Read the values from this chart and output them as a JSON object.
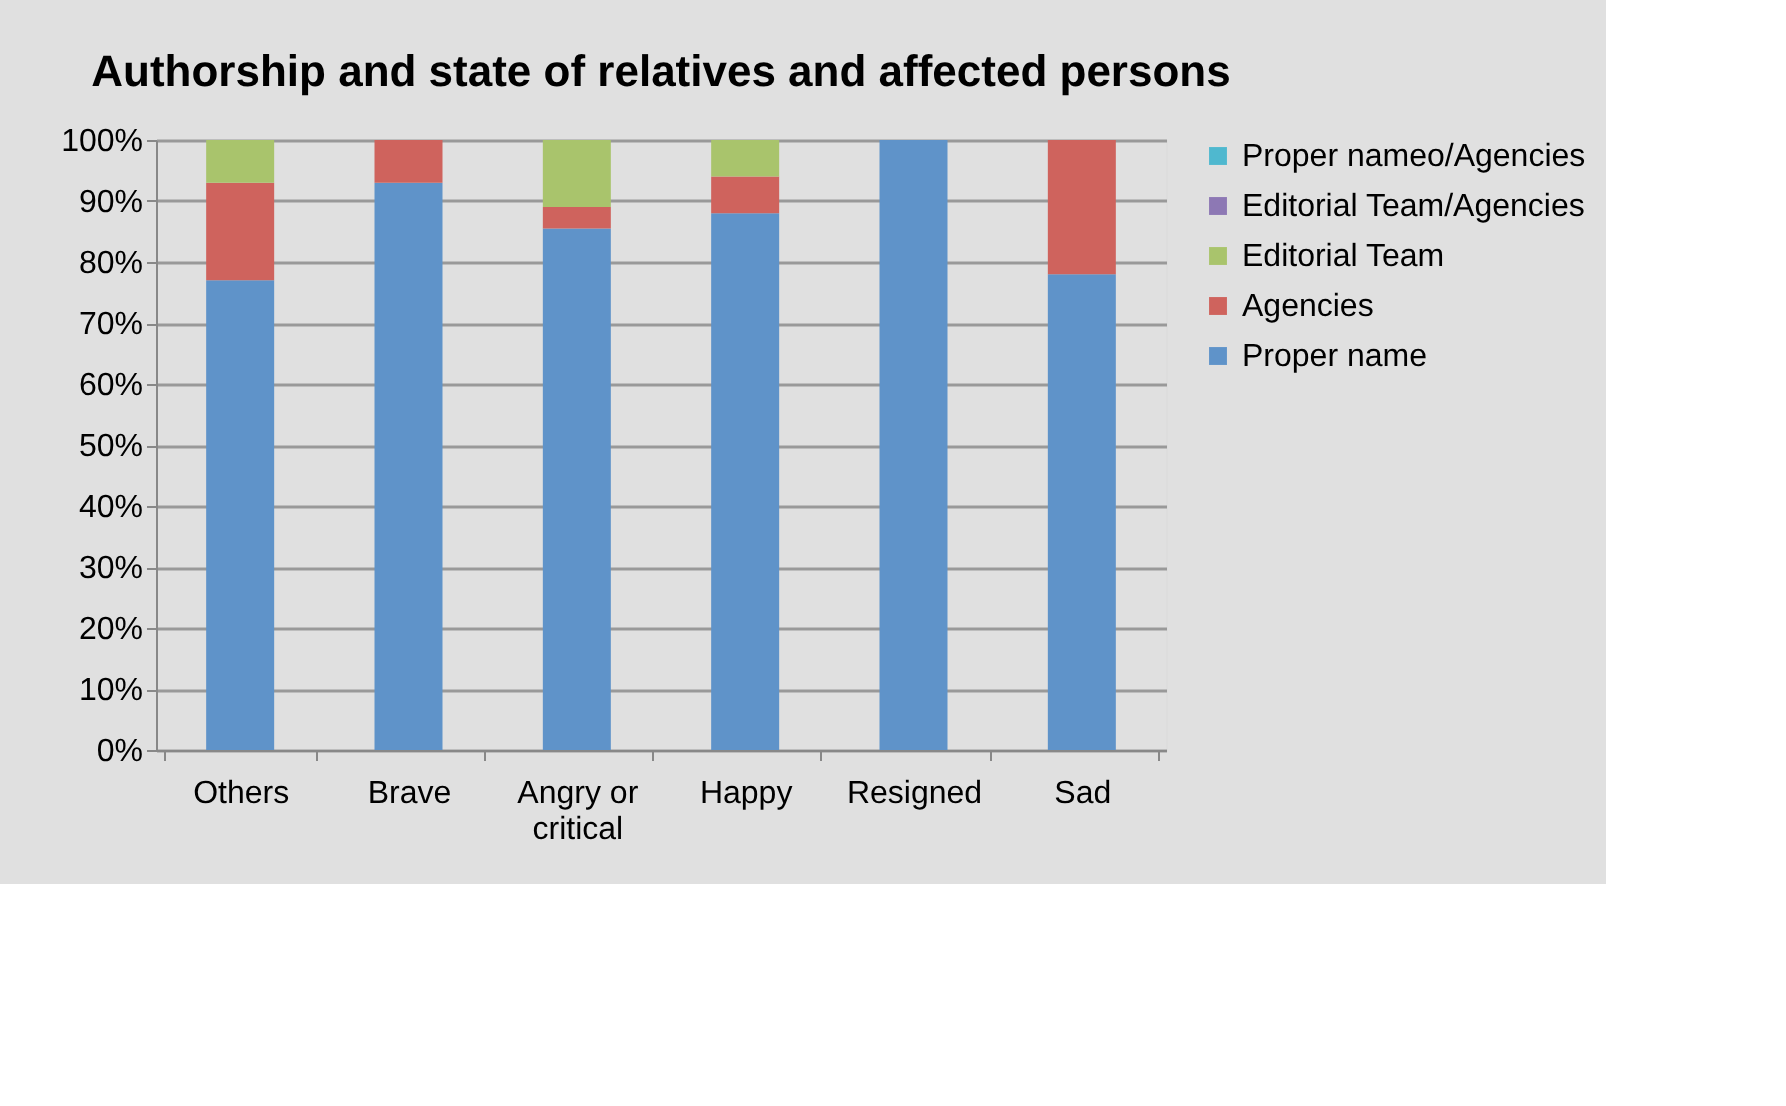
{
  "chart_data": {
    "type": "bar",
    "stacked": true,
    "title": "Authorship and state of relatives and affected persons",
    "categories": [
      "Others",
      "Brave",
      "Angry or critical",
      "Happy",
      "Resigned",
      "Sad"
    ],
    "series": [
      {
        "name": "Proper name",
        "color": "#5f93c9",
        "values": [
          77,
          93,
          85.5,
          88,
          100,
          78
        ]
      },
      {
        "name": "Agencies",
        "color": "#cf635d",
        "values": [
          16,
          7,
          3.5,
          6,
          0,
          22
        ]
      },
      {
        "name": "Editorial Team",
        "color": "#a9c46c",
        "values": [
          7,
          0,
          11,
          6,
          0,
          0
        ]
      },
      {
        "name": "Editorial Team/Agencies",
        "color": "#8d78b4",
        "values": [
          0,
          0,
          0,
          0,
          0,
          0
        ]
      },
      {
        "name": "Proper nameo/Agencies",
        "color": "#4fb8cf",
        "values": [
          0,
          0,
          0,
          0,
          0,
          0
        ]
      }
    ],
    "ylim": [
      0,
      100
    ],
    "yticks": [
      {
        "value": 0,
        "label": "0%"
      },
      {
        "value": 10,
        "label": "10%"
      },
      {
        "value": 20,
        "label": "20%"
      },
      {
        "value": 30,
        "label": "30%"
      },
      {
        "value": 40,
        "label": "40%"
      },
      {
        "value": 50,
        "label": "50%"
      },
      {
        "value": 60,
        "label": "60%"
      },
      {
        "value": 70,
        "label": "70%"
      },
      {
        "value": 80,
        "label": "80%"
      },
      {
        "value": 90,
        "label": "90%"
      },
      {
        "value": 100,
        "label": "100%"
      }
    ],
    "grid": "y",
    "legend": "right"
  }
}
